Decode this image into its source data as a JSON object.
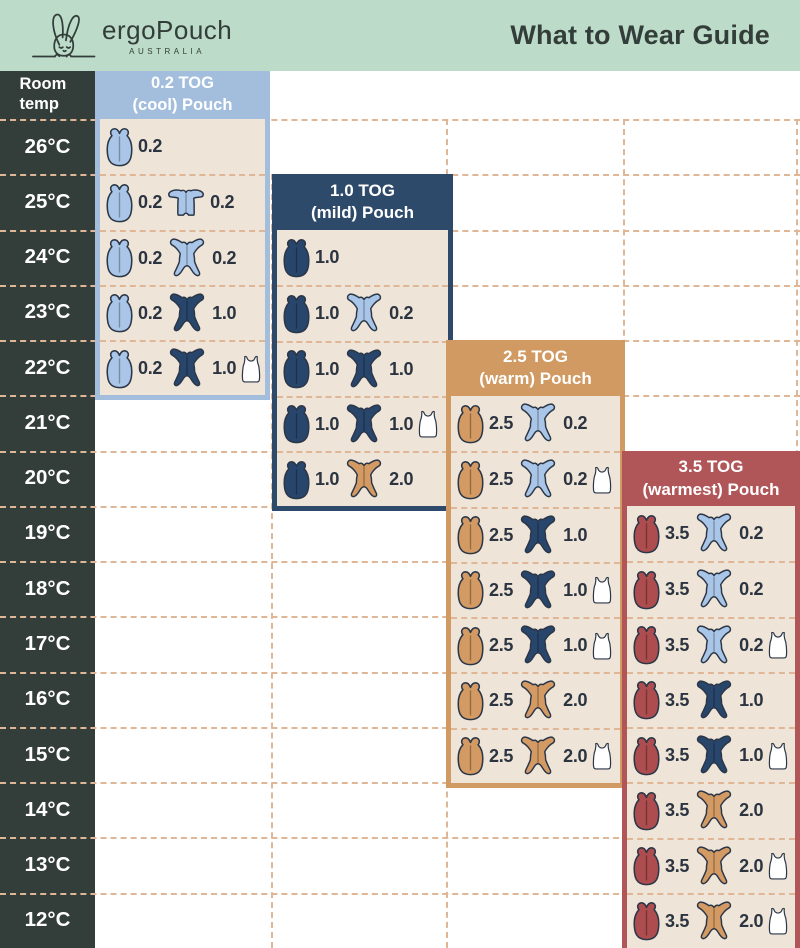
{
  "header": {
    "title": "What to Wear Guide"
  },
  "brand": {
    "name": "ergoPouch",
    "sub": "AUSTRALIA"
  },
  "temp_column": {
    "header": "Room temp",
    "temps": [
      "26°C",
      "25°C",
      "24°C",
      "23°C",
      "22°C",
      "21°C",
      "20°C",
      "19°C",
      "18°C",
      "17°C",
      "16°C",
      "15°C",
      "14°C",
      "13°C",
      "12°C"
    ]
  },
  "palette": {
    "mint": "#bcdcc9",
    "charcoal": "#333d3a",
    "cream": "#eee4d8",
    "dash": "#dfb796",
    "text_dark": "#333d3a",
    "number_text": "#2b3440",
    "white": "#ffffff",
    "light_blue": "#a3bedd",
    "navy": "#2e4a6b",
    "tan": "#d09a62",
    "red": "#b05558",
    "icon_light_blue": "#a9c6e8",
    "icon_navy": "#28466c",
    "icon_tan": "#d39b63",
    "icon_red": "#ad4d4f",
    "icon_outline": "#2b3647"
  },
  "panels": [
    {
      "id": "0-2-tog",
      "title_line1": "0.2 TOG",
      "title_line2": "(cool) Pouch",
      "accent_key": "light_blue",
      "rows": [
        {
          "temp": "26°C",
          "items": [
            {
              "icon": "sleep-bag",
              "color": "icon_light_blue",
              "tog": "0.2"
            }
          ]
        },
        {
          "temp": "25°C",
          "items": [
            {
              "icon": "sleep-bag",
              "color": "icon_light_blue",
              "tog": "0.2"
            },
            {
              "icon": "romper",
              "color": "icon_light_blue",
              "tog": "0.2"
            }
          ]
        },
        {
          "temp": "24°C",
          "items": [
            {
              "icon": "sleep-bag",
              "color": "icon_light_blue",
              "tog": "0.2"
            },
            {
              "icon": "onesie",
              "color": "icon_light_blue",
              "tog": "0.2"
            }
          ]
        },
        {
          "temp": "23°C",
          "items": [
            {
              "icon": "sleep-bag",
              "color": "icon_light_blue",
              "tog": "0.2"
            },
            {
              "icon": "onesie",
              "color": "icon_navy",
              "tog": "1.0"
            }
          ]
        },
        {
          "temp": "22°C",
          "items": [
            {
              "icon": "sleep-bag",
              "color": "icon_light_blue",
              "tog": "0.2"
            },
            {
              "icon": "onesie",
              "color": "icon_navy",
              "tog": "1.0"
            },
            {
              "icon": "singlet",
              "color": "white",
              "tog": ""
            }
          ]
        }
      ]
    },
    {
      "id": "1-0-tog",
      "title_line1": "1.0 TOG",
      "title_line2": "(mild) Pouch",
      "accent_key": "navy",
      "rows": [
        {
          "temp": "24°C",
          "items": [
            {
              "icon": "sleep-bag",
              "color": "icon_navy",
              "tog": "1.0"
            }
          ]
        },
        {
          "temp": "23°C",
          "items": [
            {
              "icon": "sleep-bag",
              "color": "icon_navy",
              "tog": "1.0"
            },
            {
              "icon": "onesie",
              "color": "icon_light_blue",
              "tog": "0.2"
            }
          ]
        },
        {
          "temp": "22°C",
          "items": [
            {
              "icon": "sleep-bag",
              "color": "icon_navy",
              "tog": "1.0"
            },
            {
              "icon": "onesie",
              "color": "icon_navy",
              "tog": "1.0"
            }
          ]
        },
        {
          "temp": "21°C",
          "items": [
            {
              "icon": "sleep-bag",
              "color": "icon_navy",
              "tog": "1.0"
            },
            {
              "icon": "onesie",
              "color": "icon_navy",
              "tog": "1.0"
            },
            {
              "icon": "singlet",
              "color": "white",
              "tog": ""
            }
          ]
        },
        {
          "temp": "20°C",
          "items": [
            {
              "icon": "sleep-bag",
              "color": "icon_navy",
              "tog": "1.0"
            },
            {
              "icon": "onesie",
              "color": "icon_tan",
              "tog": "2.0"
            }
          ]
        }
      ]
    },
    {
      "id": "2-5-tog",
      "title_line1": "2.5 TOG",
      "title_line2": "(warm) Pouch",
      "accent_key": "tan",
      "rows": [
        {
          "temp": "21°C",
          "items": [
            {
              "icon": "sleep-bag",
              "color": "icon_tan",
              "tog": "2.5"
            },
            {
              "icon": "onesie",
              "color": "icon_light_blue",
              "tog": "0.2"
            }
          ]
        },
        {
          "temp": "20°C",
          "items": [
            {
              "icon": "sleep-bag",
              "color": "icon_tan",
              "tog": "2.5"
            },
            {
              "icon": "onesie",
              "color": "icon_light_blue",
              "tog": "0.2"
            },
            {
              "icon": "singlet",
              "color": "white",
              "tog": ""
            }
          ]
        },
        {
          "temp": "19°C",
          "items": [
            {
              "icon": "sleep-bag",
              "color": "icon_tan",
              "tog": "2.5"
            },
            {
              "icon": "onesie",
              "color": "icon_navy",
              "tog": "1.0"
            }
          ]
        },
        {
          "temp": "18°C",
          "items": [
            {
              "icon": "sleep-bag",
              "color": "icon_tan",
              "tog": "2.5"
            },
            {
              "icon": "onesie",
              "color": "icon_navy",
              "tog": "1.0"
            },
            {
              "icon": "singlet",
              "color": "white",
              "tog": ""
            }
          ]
        },
        {
          "temp": "17°C",
          "items": [
            {
              "icon": "sleep-bag",
              "color": "icon_tan",
              "tog": "2.5"
            },
            {
              "icon": "onesie",
              "color": "icon_navy",
              "tog": "1.0"
            },
            {
              "icon": "singlet",
              "color": "white",
              "tog": ""
            }
          ]
        },
        {
          "temp": "16°C",
          "items": [
            {
              "icon": "sleep-bag",
              "color": "icon_tan",
              "tog": "2.5"
            },
            {
              "icon": "onesie",
              "color": "icon_tan",
              "tog": "2.0"
            }
          ]
        },
        {
          "temp": "15°C",
          "items": [
            {
              "icon": "sleep-bag",
              "color": "icon_tan",
              "tog": "2.5"
            },
            {
              "icon": "onesie",
              "color": "icon_tan",
              "tog": "2.0"
            },
            {
              "icon": "singlet",
              "color": "white",
              "tog": ""
            }
          ]
        }
      ]
    },
    {
      "id": "3-5-tog",
      "title_line1": "3.5 TOG",
      "title_line2": "(warmest) Pouch",
      "accent_key": "red",
      "rows": [
        {
          "temp": "19°C",
          "items": [
            {
              "icon": "sleep-bag",
              "color": "icon_red",
              "tog": "3.5"
            },
            {
              "icon": "onesie",
              "color": "icon_light_blue",
              "tog": "0.2"
            }
          ]
        },
        {
          "temp": "18°C",
          "items": [
            {
              "icon": "sleep-bag",
              "color": "icon_red",
              "tog": "3.5"
            },
            {
              "icon": "onesie",
              "color": "icon_light_blue",
              "tog": "0.2"
            }
          ]
        },
        {
          "temp": "17°C",
          "items": [
            {
              "icon": "sleep-bag",
              "color": "icon_red",
              "tog": "3.5"
            },
            {
              "icon": "onesie",
              "color": "icon_light_blue",
              "tog": "0.2"
            },
            {
              "icon": "singlet",
              "color": "white",
              "tog": ""
            }
          ]
        },
        {
          "temp": "16°C",
          "items": [
            {
              "icon": "sleep-bag",
              "color": "icon_red",
              "tog": "3.5"
            },
            {
              "icon": "onesie",
              "color": "icon_navy",
              "tog": "1.0"
            }
          ]
        },
        {
          "temp": "15°C",
          "items": [
            {
              "icon": "sleep-bag",
              "color": "icon_red",
              "tog": "3.5"
            },
            {
              "icon": "onesie",
              "color": "icon_navy",
              "tog": "1.0"
            },
            {
              "icon": "singlet",
              "color": "white",
              "tog": ""
            }
          ]
        },
        {
          "temp": "14°C",
          "items": [
            {
              "icon": "sleep-bag",
              "color": "icon_red",
              "tog": "3.5"
            },
            {
              "icon": "onesie",
              "color": "icon_tan",
              "tog": "2.0"
            }
          ]
        },
        {
          "temp": "13°C",
          "items": [
            {
              "icon": "sleep-bag",
              "color": "icon_red",
              "tog": "3.5"
            },
            {
              "icon": "onesie",
              "color": "icon_tan",
              "tog": "2.0"
            },
            {
              "icon": "singlet",
              "color": "white",
              "tog": ""
            }
          ]
        },
        {
          "temp": "12°C",
          "items": [
            {
              "icon": "sleep-bag",
              "color": "icon_red",
              "tog": "3.5"
            },
            {
              "icon": "onesie",
              "color": "icon_tan",
              "tog": "2.0"
            },
            {
              "icon": "singlet",
              "color": "white",
              "tog": ""
            }
          ]
        }
      ]
    }
  ],
  "chart_data": {
    "type": "table",
    "title": "What to Wear Guide",
    "row_axis_label": "Room temp",
    "temperatures_c": [
      26,
      25,
      24,
      23,
      22,
      21,
      20,
      19,
      18,
      17,
      16,
      15,
      14,
      13,
      12
    ],
    "columns": [
      "0.2 TOG (cool) Pouch",
      "1.0 TOG (mild) Pouch",
      "2.5 TOG (warm) Pouch",
      "3.5 TOG (warmest) Pouch"
    ],
    "cells": {
      "0.2 TOG (cool) Pouch": {
        "26": "Pouch 0.2",
        "25": "Pouch 0.2 + Romper 0.2",
        "24": "Pouch 0.2 + Onesie 0.2",
        "23": "Pouch 0.2 + Onesie 1.0",
        "22": "Pouch 0.2 + Onesie 1.0 + Singlet"
      },
      "1.0 TOG (mild) Pouch": {
        "24": "Pouch 1.0",
        "23": "Pouch 1.0 + Onesie 0.2",
        "22": "Pouch 1.0 + Onesie 1.0",
        "21": "Pouch 1.0 + Onesie 1.0 + Singlet",
        "20": "Pouch 1.0 + Onesie 2.0"
      },
      "2.5 TOG (warm) Pouch": {
        "21": "Pouch 2.5 + Onesie 0.2",
        "20": "Pouch 2.5 + Onesie 0.2 + Singlet",
        "19": "Pouch 2.5 + Onesie 1.0",
        "18": "Pouch 2.5 + Onesie 1.0 + Singlet",
        "17": "Pouch 2.5 + Onesie 1.0 + Singlet",
        "16": "Pouch 2.5 + Onesie 2.0",
        "15": "Pouch 2.5 + Onesie 2.0 + Singlet"
      },
      "3.5 TOG (warmest) Pouch": {
        "19": "Pouch 3.5 + Onesie 0.2",
        "18": "Pouch 3.5 + Onesie 0.2",
        "17": "Pouch 3.5 + Onesie 0.2 + Singlet",
        "16": "Pouch 3.5 + Onesie 1.0",
        "15": "Pouch 3.5 + Onesie 1.0 + Singlet",
        "14": "Pouch 3.5 + Onesie 2.0",
        "13": "Pouch 3.5 + Onesie 2.0 + Singlet",
        "12": "Pouch 3.5 + Onesie 2.0 + Singlet"
      }
    }
  }
}
